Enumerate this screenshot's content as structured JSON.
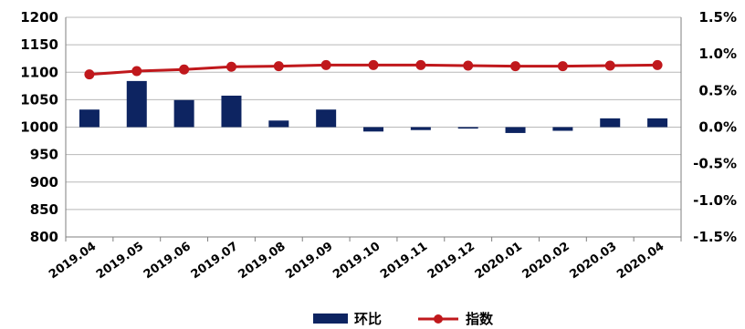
{
  "chart_data": {
    "type": "bar+line",
    "categories": [
      "2019.04",
      "2019.05",
      "2019.06",
      "2019.07",
      "2019.08",
      "2019.09",
      "2019.10",
      "2019.11",
      "2019.12",
      "2020.01",
      "2020.02",
      "2020.03",
      "2020.04"
    ],
    "series": [
      {
        "name": "环比",
        "type": "bar",
        "axis": "right",
        "color": "#0d2461",
        "values": [
          0.24,
          0.63,
          0.37,
          0.43,
          0.09,
          0.24,
          -0.06,
          -0.04,
          -0.02,
          -0.08,
          -0.05,
          0.12,
          0.12
        ]
      },
      {
        "name": "指数",
        "type": "line",
        "axis": "left",
        "color": "#c0181c",
        "values": [
          1096,
          1102,
          1105,
          1110,
          1111,
          1113,
          1113,
          1113,
          1112,
          1111,
          1111,
          1112,
          1113
        ]
      }
    ],
    "y_left": {
      "min": 800,
      "max": 1200,
      "step": 50,
      "tick_labels": [
        "800",
        "850",
        "900",
        "950",
        "1000",
        "1050",
        "1100",
        "1150",
        "1200"
      ]
    },
    "y_right": {
      "min": -1.5,
      "max": 1.5,
      "step": 0.5,
      "tick_labels": [
        "-1.5%",
        "-1.0%",
        "-0.5%",
        "0.0%",
        "0.5%",
        "1.0%",
        "1.5%"
      ]
    },
    "grid": true,
    "legend_position": "bottom-center"
  }
}
